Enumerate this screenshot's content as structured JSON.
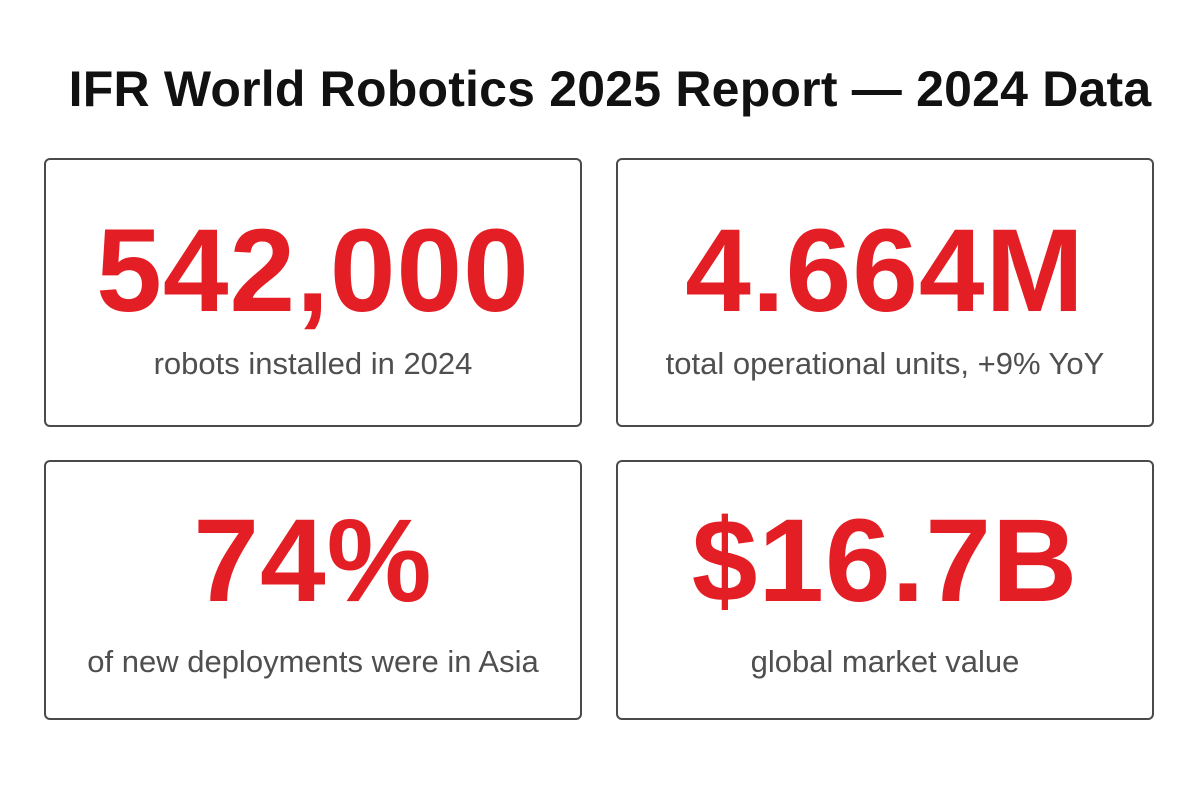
{
  "page": {
    "title": "IFR World Robotics 2025 Report — 2024 Data"
  },
  "colors": {
    "accent_value": "#e41e25",
    "caption_text": "#4f4f4f",
    "title_text": "#111111",
    "card_border": "#4a4a4a",
    "background": "#ffffff"
  },
  "stats": [
    {
      "value": "542,000",
      "caption": "robots installed in 2024"
    },
    {
      "value": "4.664M",
      "caption": "total operational units, +9% YoY"
    },
    {
      "value": "74%",
      "caption": "of new deployments were in Asia"
    },
    {
      "value": "$16.7B",
      "caption": "global market value"
    }
  ]
}
